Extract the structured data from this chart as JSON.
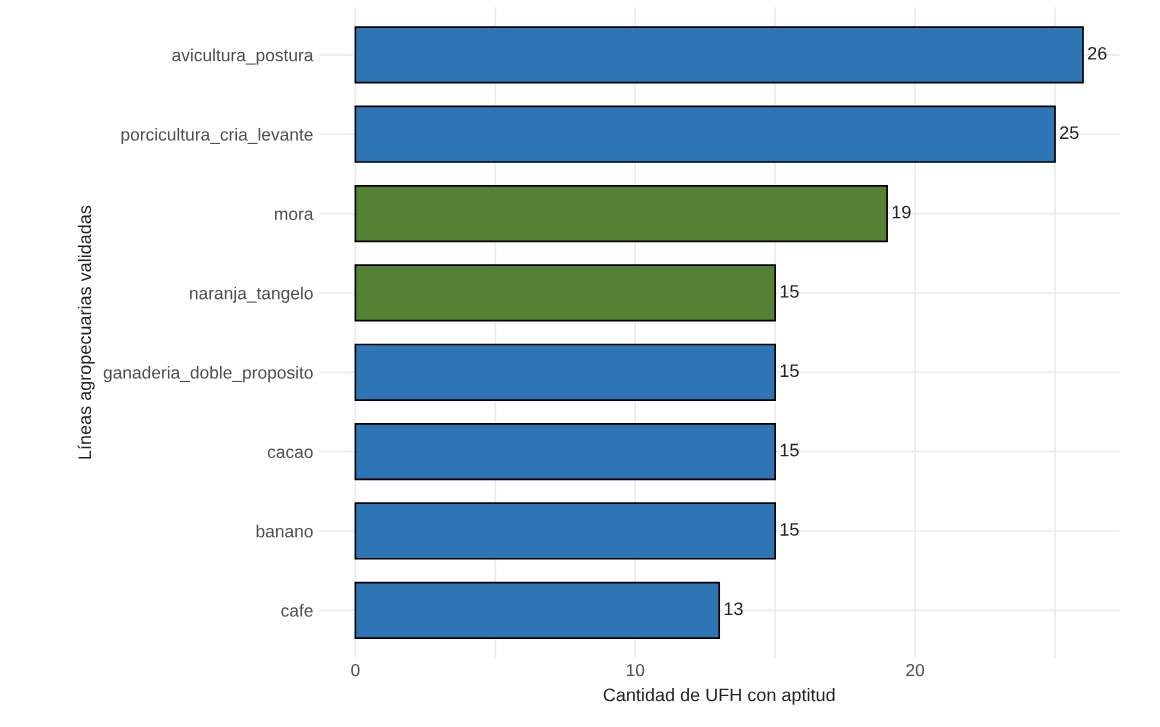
{
  "chart_data": {
    "type": "bar",
    "orientation": "horizontal",
    "xlabel": "Cantidad de UFH con aptitud",
    "ylabel": "Líneas agropecuarias validadas",
    "categories": [
      "avicultura_postura",
      "porcicultura_cria_levante",
      "mora",
      "naranja_tangelo",
      "ganaderia_doble_proposito",
      "cacao",
      "banano",
      "cafe"
    ],
    "values": [
      26,
      25,
      19,
      15,
      15,
      15,
      15,
      13
    ],
    "colors": [
      "#2e75b6",
      "#2e75b6",
      "#548235",
      "#548235",
      "#2e75b6",
      "#2e75b6",
      "#2e75b6",
      "#2e75b6"
    ],
    "xlim": [
      -1.3,
      27.3
    ],
    "xticks": [
      0,
      {
        "value": 5,
        "label": null
      },
      10,
      {
        "value": 15,
        "label": null
      },
      20,
      {
        "value": 25,
        "label": null
      }
    ],
    "grid": true,
    "data_labels": true
  }
}
